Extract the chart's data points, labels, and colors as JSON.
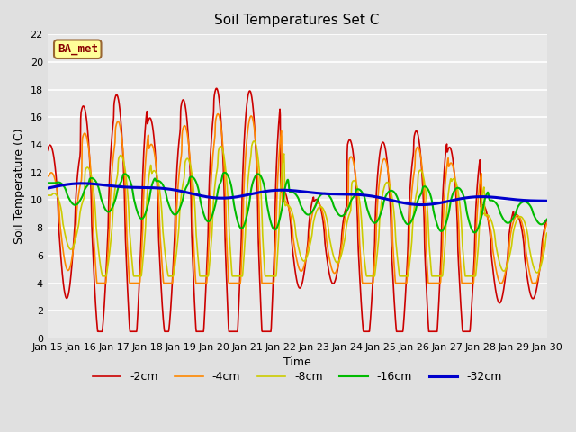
{
  "title": "Soil Temperatures Set C",
  "xlabel": "Time",
  "ylabel": "Soil Temperature (C)",
  "ylim": [
    0,
    22
  ],
  "yticks": [
    0,
    2,
    4,
    6,
    8,
    10,
    12,
    14,
    16,
    18,
    20,
    22
  ],
  "annotation_text": "BA_met",
  "annotation_bg": "#ffff99",
  "annotation_border": "#996633",
  "annotation_text_color": "#880000",
  "fig_bg": "#e0e0e0",
  "plot_bg": "#e8e8e8",
  "series_colors": {
    "-2cm": "#cc0000",
    "-4cm": "#ff8800",
    "-8cm": "#cccc00",
    "-16cm": "#00bb00",
    "-32cm": "#0000cc"
  },
  "series_linewidth": {
    "-2cm": 1.2,
    "-4cm": 1.2,
    "-8cm": 1.2,
    "-16cm": 1.5,
    "-32cm": 2.2
  },
  "x_start": 15.0,
  "x_end": 30.0,
  "xtick_positions": [
    15,
    16,
    17,
    18,
    19,
    20,
    21,
    22,
    23,
    24,
    25,
    26,
    27,
    28,
    29,
    30
  ],
  "xtick_labels": [
    "Jan 15",
    "Jan 16",
    "Jan 17",
    "Jan 18",
    "Jan 19",
    "Jan 20",
    "Jan 21",
    "Jan 22",
    "Jan 23",
    "Jan 24",
    "Jan 25",
    "Jan 26",
    "Jan 27",
    "Jan 28",
    "Jan 29",
    "Jan 30"
  ]
}
